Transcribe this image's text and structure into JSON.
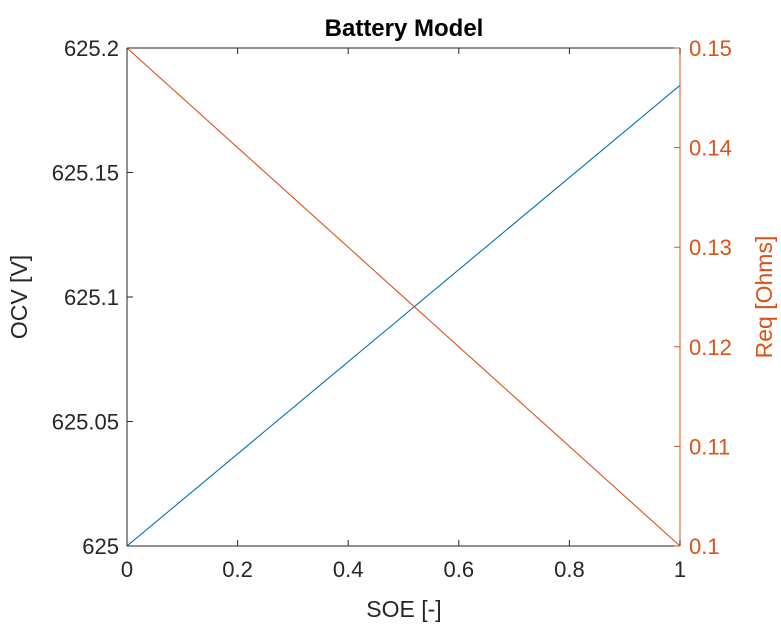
{
  "chart_data": {
    "type": "line",
    "title": "Battery Model",
    "xlabel": "SOE [-]",
    "ylabel_left": "OCV [V]",
    "ylabel_right": "Req [Ohms]",
    "xlim": [
      0,
      1
    ],
    "ylim_left": [
      625,
      625.2
    ],
    "ylim_right": [
      0.1,
      0.15
    ],
    "x_ticks": [
      0,
      0.2,
      0.4,
      0.6,
      0.8,
      1
    ],
    "x_tick_labels": [
      "0",
      "0.2",
      "0.4",
      "0.6",
      "0.8",
      "1"
    ],
    "y_left_ticks": [
      625,
      625.05,
      625.1,
      625.15,
      625.2
    ],
    "y_left_tick_labels": [
      "625",
      "625.05",
      "625.1",
      "625.15",
      "625.2"
    ],
    "y_right_ticks": [
      0.1,
      0.11,
      0.12,
      0.13,
      0.14,
      0.15
    ],
    "y_right_tick_labels": [
      "0.1",
      "0.11",
      "0.12",
      "0.13",
      "0.14",
      "0.15"
    ],
    "grid": false,
    "box": true,
    "series": [
      {
        "axis": "left",
        "color": "#0072BD",
        "x": [
          0,
          1
        ],
        "y": [
          625,
          625.185
        ]
      },
      {
        "axis": "right",
        "color": "#D95319",
        "x": [
          0,
          1
        ],
        "y": [
          0.15,
          0.1
        ]
      }
    ]
  },
  "colors": {
    "left_axis": "#262626",
    "right_axis": "#D95319",
    "series_1": "#0072BD",
    "series_2": "#D95319"
  }
}
